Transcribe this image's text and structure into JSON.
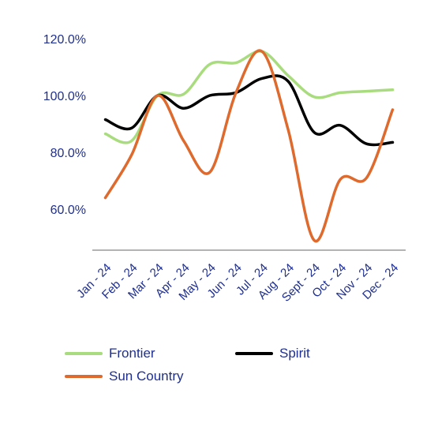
{
  "chart_data": {
    "type": "line",
    "title": "",
    "xlabel": "",
    "ylabel": "",
    "categories": [
      "Jan - 24",
      "Feb - 24",
      "Mar - 24",
      "Apr - 24",
      "May - 24",
      "Jun - 24",
      "Jul - 24",
      "Aug - 24",
      "Sept - 24",
      "Oct - 24",
      "Nov - 24",
      "Dec - 24"
    ],
    "ylim": [
      45,
      125
    ],
    "yticks": [
      60,
      80,
      100,
      120
    ],
    "ytick_labels": [
      "60.0%",
      "80.0%",
      "100.0%",
      "120.0%"
    ],
    "grid": false,
    "legend_position": "bottom",
    "series": [
      {
        "name": "Frontier",
        "color": "#a9dc7e",
        "values": [
          86.5,
          84,
          100,
          100.5,
          111,
          111.5,
          115.5,
          107,
          99.5,
          101,
          101.5,
          102
        ]
      },
      {
        "name": "Spirit",
        "color": "#000000",
        "values": [
          91.5,
          88.5,
          100,
          95.5,
          100,
          101,
          106,
          105,
          87,
          89.5,
          83,
          83.5
        ]
      },
      {
        "name": "Sun Country",
        "color": "#de6a2e",
        "values": [
          64,
          79,
          100,
          84,
          73,
          101,
          115.5,
          88,
          49,
          70.5,
          71,
          95
        ]
      }
    ]
  }
}
